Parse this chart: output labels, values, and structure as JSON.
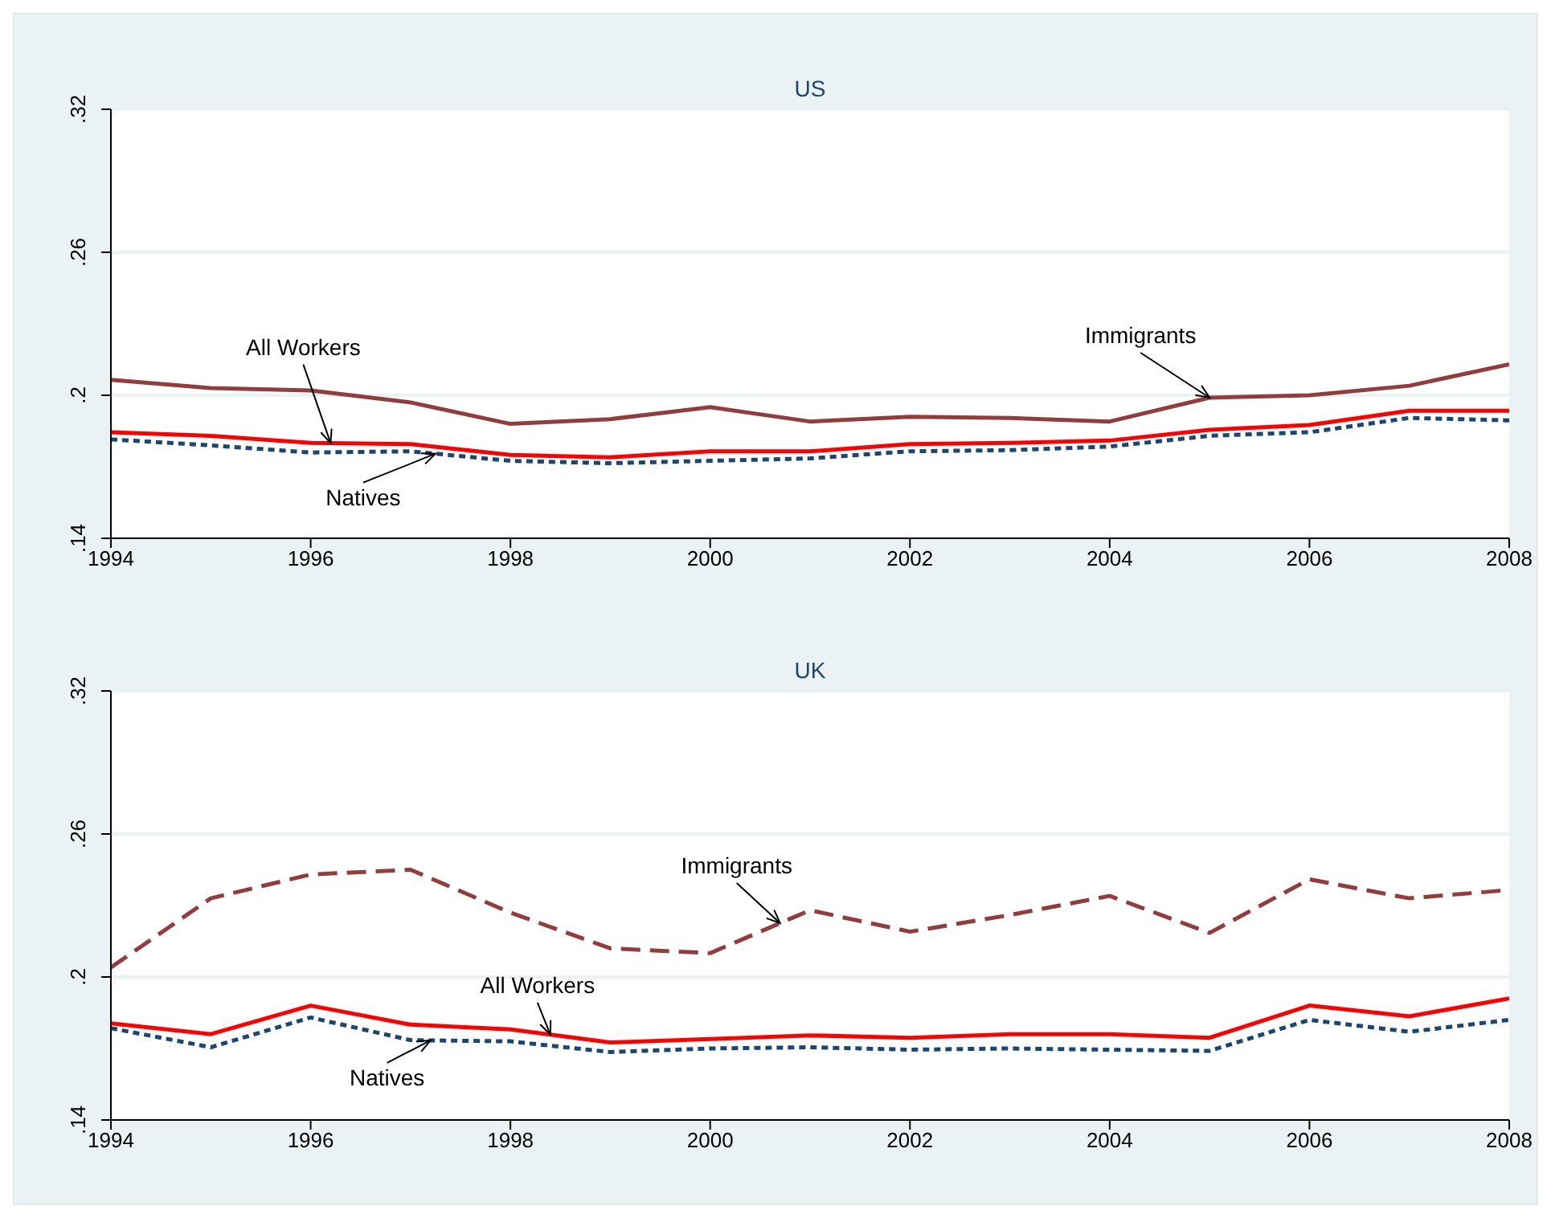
{
  "chart_data": [
    {
      "type": "line",
      "title": "US",
      "x": [
        1994,
        1995,
        1996,
        1997,
        1998,
        1999,
        2000,
        2001,
        2002,
        2003,
        2004,
        2005,
        2006,
        2007,
        2008
      ],
      "xlim": [
        1994,
        2008
      ],
      "xticks": [
        1994,
        1996,
        1998,
        2000,
        2002,
        2004,
        2006,
        2008
      ],
      "ylim": [
        0.14,
        0.32
      ],
      "yticks": [
        {
          "value": 0.14,
          "label": ".14"
        },
        {
          "value": 0.2,
          "label": ".2"
        },
        {
          "value": 0.26,
          "label": ".26"
        },
        {
          "value": 0.32,
          "label": ".32"
        }
      ],
      "grid": "y",
      "series": [
        {
          "name": "Immigrants",
          "color": "#943c3c",
          "line_style": "solid",
          "values": [
            0.2065,
            0.203,
            0.202,
            0.197,
            0.188,
            0.19,
            0.195,
            0.189,
            0.191,
            0.1905,
            0.189,
            0.199,
            0.2,
            0.204,
            0.213
          ]
        },
        {
          "name": "All Workers",
          "color": "#ff0000",
          "line_style": "solid",
          "values": [
            0.1845,
            0.183,
            0.18,
            0.1795,
            0.175,
            0.174,
            0.1765,
            0.1765,
            0.1795,
            0.18,
            0.181,
            0.1855,
            0.1875,
            0.1935,
            0.1935
          ]
        },
        {
          "name": "Natives",
          "color": "#1a476f",
          "line_style": "dotted",
          "values": [
            0.1815,
            0.179,
            0.176,
            0.1765,
            0.1725,
            0.1715,
            0.1725,
            0.1735,
            0.1765,
            0.177,
            0.1785,
            0.183,
            0.1845,
            0.1905,
            0.1895
          ]
        }
      ]
    },
    {
      "type": "line",
      "title": "UK",
      "x": [
        1994,
        1995,
        1996,
        1997,
        1998,
        1999,
        2000,
        2001,
        2002,
        2003,
        2004,
        2005,
        2006,
        2007,
        2008
      ],
      "xlim": [
        1994,
        2008
      ],
      "xticks": [
        1994,
        1996,
        1998,
        2000,
        2002,
        2004,
        2006,
        2008
      ],
      "ylim": [
        0.14,
        0.32
      ],
      "yticks": [
        {
          "value": 0.14,
          "label": ".14"
        },
        {
          "value": 0.2,
          "label": ".2"
        },
        {
          "value": 0.26,
          "label": ".26"
        },
        {
          "value": 0.32,
          "label": ".32"
        }
      ],
      "grid": "y",
      "series": [
        {
          "name": "Immigrants",
          "color": "#943c3c",
          "line_style": "dashed",
          "values": [
            0.204,
            0.233,
            0.243,
            0.245,
            0.227,
            0.212,
            0.21,
            0.228,
            0.219,
            0.226,
            0.234,
            0.2185,
            0.241,
            0.233,
            0.2365
          ]
        },
        {
          "name": "All Workers",
          "color": "#ff0000",
          "line_style": "solid",
          "values": [
            0.1805,
            0.176,
            0.188,
            0.18,
            0.178,
            0.1725,
            0.174,
            0.1755,
            0.1745,
            0.176,
            0.176,
            0.1745,
            0.188,
            0.1835,
            0.191
          ]
        },
        {
          "name": "Natives",
          "color": "#1a476f",
          "line_style": "dotted",
          "values": [
            0.1785,
            0.1705,
            0.183,
            0.1735,
            0.173,
            0.1685,
            0.17,
            0.1705,
            0.1695,
            0.17,
            0.1695,
            0.169,
            0.182,
            0.177,
            0.182
          ]
        }
      ]
    }
  ]
}
